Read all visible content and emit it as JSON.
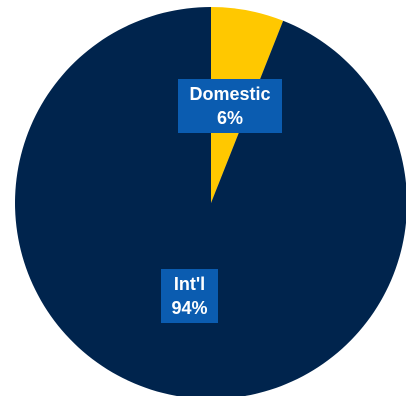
{
  "chart_data": {
    "type": "pie",
    "title": "",
    "categories": [
      "Domestic",
      "Int'l"
    ],
    "values": [
      6,
      94
    ],
    "labels": [
      {
        "category": "Domestic",
        "value_text": "6%"
      },
      {
        "category": "Int'l",
        "value_text": "94%"
      }
    ],
    "colors": {
      "Domestic": "#ffc800",
      "Int'l": "#00244d",
      "label_background": "#0b5cb0",
      "label_text": "#ffffff"
    },
    "start_angle": "12 o'clock",
    "direction": "clockwise",
    "legend": "none"
  }
}
